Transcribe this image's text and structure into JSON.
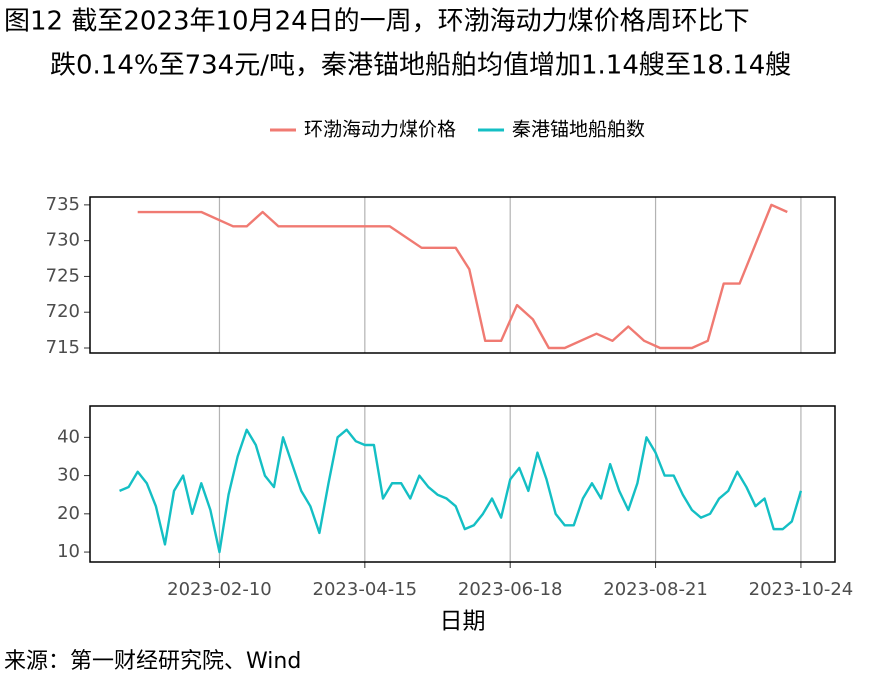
{
  "title": [
    "图12  截至2023年10月24日的一周，环渤海动力煤价格周环比下",
    "跌0.14%至734元/吨，秦港锚地船舶均值增加1.14艘至18.14艘"
  ],
  "source": "来源：第一财经研究院、Wind",
  "chart_data": [
    {
      "type": "line",
      "x": [
        "2023-01-05",
        "2023-02-02",
        "2023-02-16",
        "2023-02-22",
        "2023-03-01",
        "2023-03-08",
        "2023-04-26",
        "2023-05-10",
        "2023-05-25",
        "2023-05-31",
        "2023-06-07",
        "2023-06-14",
        "2023-06-21",
        "2023-06-28",
        "2023-07-05",
        "2023-07-12",
        "2023-07-26",
        "2023-08-02",
        "2023-08-09",
        "2023-08-16",
        "2023-08-23",
        "2023-09-06",
        "2023-09-13",
        "2023-09-20",
        "2023-09-27",
        "2023-10-11",
        "2023-10-18"
      ],
      "series": [
        {
          "name": "环渤海动力煤价格",
          "color": "#f07a72",
          "values": [
            734,
            734,
            732,
            732,
            734,
            732,
            732,
            729,
            729,
            726,
            716,
            716,
            721,
            719,
            715,
            715,
            717,
            716,
            718,
            716,
            715,
            715,
            716,
            724,
            724,
            735,
            734
          ]
        }
      ],
      "xlim": [
        "2022-12-15",
        "2023-11-08"
      ],
      "xticks": [
        "2023-02-10",
        "2023-04-15",
        "2023-06-18",
        "2023-08-21",
        "2023-10-24"
      ],
      "ylim": [
        714.3,
        736.1
      ],
      "yticks": [
        715,
        720,
        725,
        730,
        735
      ],
      "grid": true
    },
    {
      "type": "line",
      "x": [
        "2022-12-28",
        "2023-01-01",
        "2023-01-05",
        "2023-01-09",
        "2023-01-13",
        "2023-01-17",
        "2023-01-21",
        "2023-01-25",
        "2023-01-29",
        "2023-02-02",
        "2023-02-06",
        "2023-02-10",
        "2023-02-14",
        "2023-02-18",
        "2023-02-22",
        "2023-02-26",
        "2023-03-02",
        "2023-03-06",
        "2023-03-10",
        "2023-03-14",
        "2023-03-18",
        "2023-03-22",
        "2023-03-26",
        "2023-03-30",
        "2023-04-03",
        "2023-04-07",
        "2023-04-11",
        "2023-04-15",
        "2023-04-19",
        "2023-04-23",
        "2023-04-27",
        "2023-05-01",
        "2023-05-05",
        "2023-05-09",
        "2023-05-13",
        "2023-05-17",
        "2023-05-21",
        "2023-05-25",
        "2023-05-29",
        "2023-06-02",
        "2023-06-06",
        "2023-06-10",
        "2023-06-14",
        "2023-06-18",
        "2023-06-22",
        "2023-06-26",
        "2023-06-30",
        "2023-07-04",
        "2023-07-08",
        "2023-07-12",
        "2023-07-16",
        "2023-07-20",
        "2023-07-24",
        "2023-07-28",
        "2023-08-01",
        "2023-08-05",
        "2023-08-09",
        "2023-08-13",
        "2023-08-17",
        "2023-08-21",
        "2023-08-25",
        "2023-08-29",
        "2023-09-02",
        "2023-09-06",
        "2023-09-10",
        "2023-09-14",
        "2023-09-18",
        "2023-09-22",
        "2023-09-26",
        "2023-09-30",
        "2023-10-04",
        "2023-10-08",
        "2023-10-12",
        "2023-10-16",
        "2023-10-20",
        "2023-10-24"
      ],
      "series": [
        {
          "name": "秦港锚地船舶数",
          "color": "#14bfc4",
          "values": [
            26,
            27,
            31,
            28,
            22,
            12,
            26,
            30,
            20,
            28,
            21,
            10,
            25,
            35,
            42,
            38,
            30,
            27,
            40,
            33,
            26,
            22,
            15,
            28,
            40,
            42,
            39,
            38,
            38,
            24,
            28,
            28,
            24,
            30,
            27,
            25,
            24,
            22,
            16,
            17,
            20,
            24,
            19,
            29,
            32,
            26,
            36,
            29,
            20,
            17,
            17,
            24,
            28,
            24,
            33,
            26,
            21,
            28,
            40,
            36,
            30,
            30,
            25,
            21,
            19,
            20,
            24,
            26,
            31,
            27,
            22,
            24,
            16,
            16,
            18,
            26
          ]
        }
      ],
      "xlim": [
        "2022-12-15",
        "2023-11-08"
      ],
      "xticks": [
        "2023-02-10",
        "2023-04-15",
        "2023-06-18",
        "2023-08-21",
        "2023-10-24"
      ],
      "ylim": [
        7.4,
        48.2
      ],
      "yticks": [
        10,
        20,
        30,
        40
      ],
      "grid": true,
      "xlabel": "日期"
    }
  ]
}
